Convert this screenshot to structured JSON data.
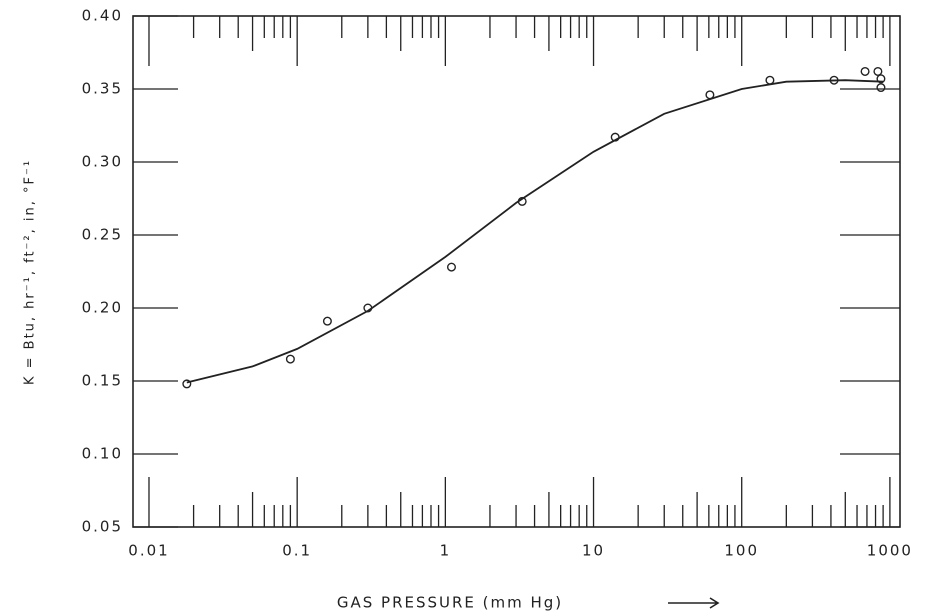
{
  "chart_data": {
    "type": "scatter",
    "xlabel": "GAS PRESSURE (mm Hg)",
    "ylabel": "K = Btu, hr⁻¹, ft⁻², in, °F⁻¹",
    "xlog": true,
    "xlim": [
      0.0078,
      1170
    ],
    "ylim": [
      0.05,
      0.4
    ],
    "xticks": [
      0.01,
      0.1,
      1,
      10,
      100,
      1000
    ],
    "yticks": [
      0.05,
      {
        "value": 0.1,
        "label": "0.10"
      },
      0.15,
      {
        "value": 0.2,
        "label": "0.20"
      },
      0.25,
      {
        "value": 0.3,
        "label": "0.30"
      },
      0.35,
      {
        "value": 0.4,
        "label": "0.40"
      }
    ],
    "color": "#222222",
    "points": {
      "x": [
        0.018,
        0.09,
        0.16,
        0.3,
        1.1,
        3.3,
        14,
        61,
        155,
        420,
        680,
        830,
        870,
        870
      ],
      "y": [
        0.148,
        0.165,
        0.191,
        0.2,
        0.228,
        0.273,
        0.317,
        0.346,
        0.356,
        0.356,
        0.362,
        0.362,
        0.357,
        0.351
      ]
    },
    "curve": {
      "x": [
        0.018,
        0.05,
        0.1,
        0.3,
        1,
        3,
        10,
        30,
        100,
        200,
        500,
        900
      ],
      "y": [
        0.149,
        0.16,
        0.172,
        0.198,
        0.235,
        0.272,
        0.307,
        0.333,
        0.35,
        0.355,
        0.356,
        0.355
      ]
    }
  }
}
